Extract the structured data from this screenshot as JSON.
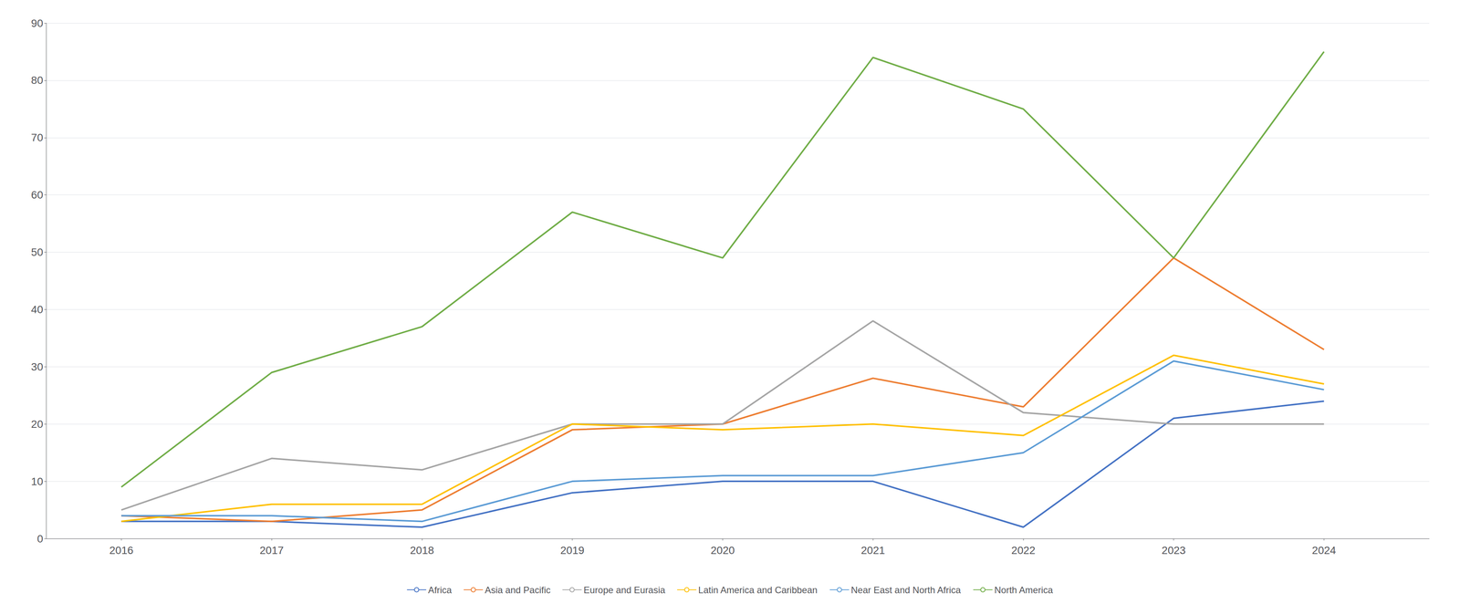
{
  "chart_data": {
    "type": "line",
    "x": [
      2016,
      2017,
      2018,
      2019,
      2020,
      2021,
      2022,
      2023,
      2024
    ],
    "series": [
      {
        "name": "Africa",
        "color": "#4472C4",
        "values": [
          3,
          3,
          2,
          8,
          10,
          10,
          2,
          21,
          24
        ]
      },
      {
        "name": "Asia and Pacific",
        "color": "#ED7D31",
        "values": [
          4,
          3,
          5,
          19,
          20,
          28,
          23,
          49,
          33
        ]
      },
      {
        "name": "Europe and Eurasia",
        "color": "#A5A5A5",
        "values": [
          5,
          14,
          12,
          20,
          20,
          38,
          22,
          20,
          20
        ]
      },
      {
        "name": "Latin America and Caribbean",
        "color": "#FFC000",
        "values": [
          3,
          6,
          6,
          20,
          19,
          20,
          18,
          32,
          27
        ]
      },
      {
        "name": "Near East and North Africa",
        "color": "#5B9BD5",
        "values": [
          4,
          4,
          3,
          10,
          11,
          11,
          15,
          31,
          26
        ]
      },
      {
        "name": "North America",
        "color": "#70AD47",
        "values": [
          9,
          29,
          37,
          57,
          49,
          84,
          75,
          49,
          85
        ]
      }
    ],
    "xlim": [
      2015.5,
      2024.7
    ],
    "xticks": [
      2016,
      2017,
      2018,
      2019,
      2020,
      2021,
      2022,
      2023,
      2024
    ],
    "ylim": [
      0,
      90
    ],
    "yticks": [
      0,
      10,
      20,
      30,
      40,
      50,
      60,
      70,
      80,
      90
    ],
    "grid": true,
    "legend": "bottom"
  }
}
